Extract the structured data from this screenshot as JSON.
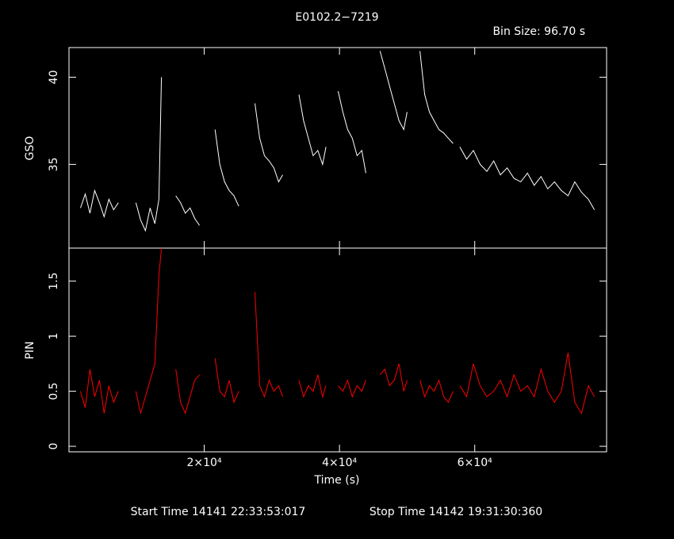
{
  "chart_data": [
    {
      "type": "line",
      "title": "E0102.2−7219",
      "annotation": "Bin Size: 96.70 s",
      "ylabel": "GSO",
      "x": [
        1700,
        2400,
        3100,
        3800,
        4500,
        5200,
        5900,
        6600,
        7300,
        8600,
        9900,
        10600,
        11300,
        12000,
        12700,
        13300,
        13670,
        14700,
        15800,
        16500,
        17200,
        17900,
        18600,
        19300,
        20500,
        21600,
        22300,
        23000,
        23700,
        24400,
        25100,
        26300,
        27500,
        28200,
        28900,
        29600,
        30300,
        31000,
        31600,
        32800,
        34000,
        34700,
        35400,
        36100,
        36800,
        37500,
        38000,
        39000,
        39800,
        40500,
        41200,
        41900,
        42600,
        43300,
        43900,
        45000,
        46000,
        46700,
        47400,
        48100,
        48800,
        49500,
        50000,
        51000,
        51900,
        52600,
        53300,
        54000,
        54700,
        55400,
        56100,
        56800,
        57300,
        57800,
        58800,
        59800,
        60800,
        61800,
        62800,
        63800,
        64800,
        65800,
        66800,
        67800,
        68800,
        69800,
        70800,
        71800,
        72800,
        73800,
        74800,
        75800,
        76800,
        77700
      ],
      "series": [
        {
          "color": "#ffffff",
          "values": [
            32.5,
            33.3,
            32.2,
            33.5,
            32.8,
            32.0,
            33.0,
            32.4,
            32.8,
            null,
            32.8,
            31.8,
            31.2,
            32.5,
            31.6,
            33.0,
            40.0,
            null,
            33.2,
            32.8,
            32.2,
            32.5,
            31.9,
            31.5,
            null,
            37.0,
            35.0,
            34.0,
            33.5,
            33.2,
            32.6,
            null,
            38.5,
            36.5,
            35.5,
            35.2,
            34.8,
            34.0,
            34.4,
            null,
            39.0,
            37.5,
            36.5,
            35.5,
            35.8,
            35.0,
            36.0,
            null,
            39.2,
            38.0,
            37.0,
            36.5,
            35.5,
            35.8,
            34.5,
            null,
            41.5,
            40.5,
            39.5,
            38.5,
            37.5,
            37.0,
            38.0,
            null,
            41.5,
            39.0,
            38.0,
            37.5,
            37.0,
            36.8,
            36.5,
            36.2,
            null,
            36.0,
            35.3,
            35.8,
            35.0,
            34.6,
            35.2,
            34.4,
            34.8,
            34.2,
            34.0,
            34.5,
            33.8,
            34.3,
            33.6,
            34.0,
            33.5,
            33.2,
            34.0,
            33.4,
            33.0,
            32.4
          ]
        }
      ],
      "xlim": [
        0,
        79500
      ],
      "xticks": [
        20000,
        40000,
        60000
      ],
      "ylim": [
        30.2,
        41.7
      ],
      "yticks": [
        35,
        40
      ]
    },
    {
      "type": "line",
      "ylabel": "PIN",
      "xlabel": "Time (s)",
      "x": [
        1700,
        2400,
        3100,
        3800,
        4500,
        5200,
        5900,
        6600,
        7300,
        8600,
        9900,
        10600,
        11300,
        12000,
        12700,
        13300,
        13670,
        14700,
        15800,
        16500,
        17200,
        17900,
        18600,
        19300,
        20500,
        21600,
        22300,
        23000,
        23700,
        24400,
        25100,
        26300,
        27500,
        28200,
        28900,
        29600,
        30300,
        31000,
        31600,
        32800,
        34000,
        34700,
        35400,
        36100,
        36800,
        37500,
        38000,
        39000,
        39800,
        40500,
        41200,
        41900,
        42600,
        43300,
        43900,
        45000,
        46000,
        46700,
        47400,
        48100,
        48800,
        49500,
        50000,
        51000,
        51900,
        52600,
        53300,
        54000,
        54700,
        55400,
        56100,
        56800,
        57300,
        57800,
        58800,
        59800,
        60800,
        61800,
        62800,
        63800,
        64800,
        65800,
        66800,
        67800,
        68800,
        69800,
        70800,
        71800,
        72800,
        73800,
        74800,
        75800,
        76800,
        77700
      ],
      "series": [
        {
          "color": "#ff0000",
          "values": [
            0.5,
            0.35,
            0.7,
            0.45,
            0.6,
            0.3,
            0.55,
            0.4,
            0.5,
            null,
            0.5,
            0.3,
            0.45,
            0.6,
            0.75,
            1.55,
            1.8,
            null,
            0.7,
            0.4,
            0.3,
            0.45,
            0.6,
            0.65,
            null,
            0.8,
            0.5,
            0.45,
            0.6,
            0.4,
            0.5,
            null,
            1.4,
            0.55,
            0.45,
            0.6,
            0.5,
            0.55,
            0.45,
            null,
            0.6,
            0.45,
            0.55,
            0.5,
            0.65,
            0.45,
            0.55,
            null,
            0.55,
            0.5,
            0.6,
            0.45,
            0.55,
            0.5,
            0.6,
            null,
            0.65,
            0.7,
            0.55,
            0.6,
            0.75,
            0.5,
            0.6,
            null,
            0.6,
            0.45,
            0.55,
            0.5,
            0.6,
            0.45,
            0.4,
            0.5,
            null,
            0.55,
            0.45,
            0.75,
            0.55,
            0.45,
            0.5,
            0.6,
            0.45,
            0.65,
            0.5,
            0.55,
            0.45,
            0.7,
            0.5,
            0.4,
            0.5,
            0.85,
            0.4,
            0.3,
            0.55,
            0.45
          ]
        }
      ],
      "xlim": [
        0,
        79500
      ],
      "xticks": [
        {
          "value": 20000,
          "label": "2×10⁴"
        },
        {
          "value": 40000,
          "label": "4×10⁴"
        },
        {
          "value": 60000,
          "label": "6×10⁴"
        }
      ],
      "ylim": [
        -0.05,
        1.8
      ],
      "yticks": [
        0,
        0.5,
        1,
        1.5
      ]
    }
  ],
  "footer": {
    "start": "Start Time 14141 22:33:53:017",
    "stop": "Stop Time 14142 19:31:30:360"
  }
}
